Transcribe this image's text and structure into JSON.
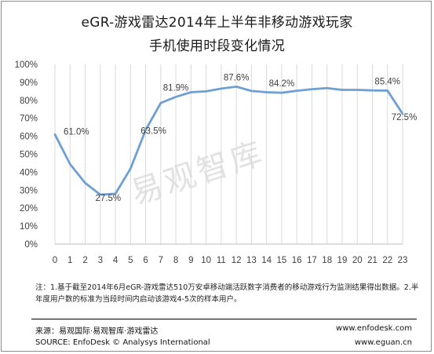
{
  "title_line1": "eGR-游戏雷达2014年上半年非移动游戏玩家",
  "title_line2": "手机使用时段变化情况",
  "watermark": "易观智库",
  "note": "注：1.基于截至2014年6月eGR-游戏雷达510万安卓移动端活跃数字消费者的移动游戏行为监测结果得出数据。2.半年度用户数的标准为当段时间内启动该游戏4-5次的样本用户。",
  "footer": {
    "source_cn": "来源：易观国际·易观智库·游戏雷达",
    "source_en": "SOURCE: EnfoDesk © Analysys International",
    "url1": "www.enfodesk.com",
    "url2": "www.eguan.cn"
  },
  "chart_data": {
    "type": "line",
    "title": "eGR-游戏雷达2014年上半年非移动游戏玩家手机使用时段变化情况",
    "xlabel": "",
    "ylabel": "",
    "x": [
      0,
      1,
      2,
      3,
      4,
      5,
      6,
      7,
      8,
      9,
      10,
      11,
      12,
      13,
      14,
      15,
      16,
      17,
      18,
      19,
      20,
      21,
      22,
      23
    ],
    "values": [
      61.0,
      44.5,
      34.0,
      27.5,
      28.0,
      42.0,
      63.5,
      78.5,
      81.9,
      84.5,
      85.0,
      86.5,
      87.6,
      85.2,
      84.5,
      84.2,
      85.3,
      86.2,
      86.8,
      85.8,
      85.8,
      85.5,
      85.4,
      72.5
    ],
    "data_labels": [
      {
        "x": 1,
        "text": "61.0%"
      },
      {
        "x": 3,
        "text": "27.5%"
      },
      {
        "x": 6,
        "text": "63.5%"
      },
      {
        "x": 8,
        "text": "81.9%"
      },
      {
        "x": 12,
        "text": "87.6%"
      },
      {
        "x": 15,
        "text": "84.2%"
      },
      {
        "x": 22,
        "text": "85.4%"
      },
      {
        "x": 23,
        "text": "72.5%"
      }
    ],
    "ylim": [
      0,
      100
    ],
    "yticks": [
      "0%",
      "10%",
      "20%",
      "30%",
      "40%",
      "50%",
      "60%",
      "70%",
      "80%",
      "90%",
      "100%"
    ],
    "grid": "vertical",
    "legend": "none",
    "line_color": "#6fa0d4"
  }
}
